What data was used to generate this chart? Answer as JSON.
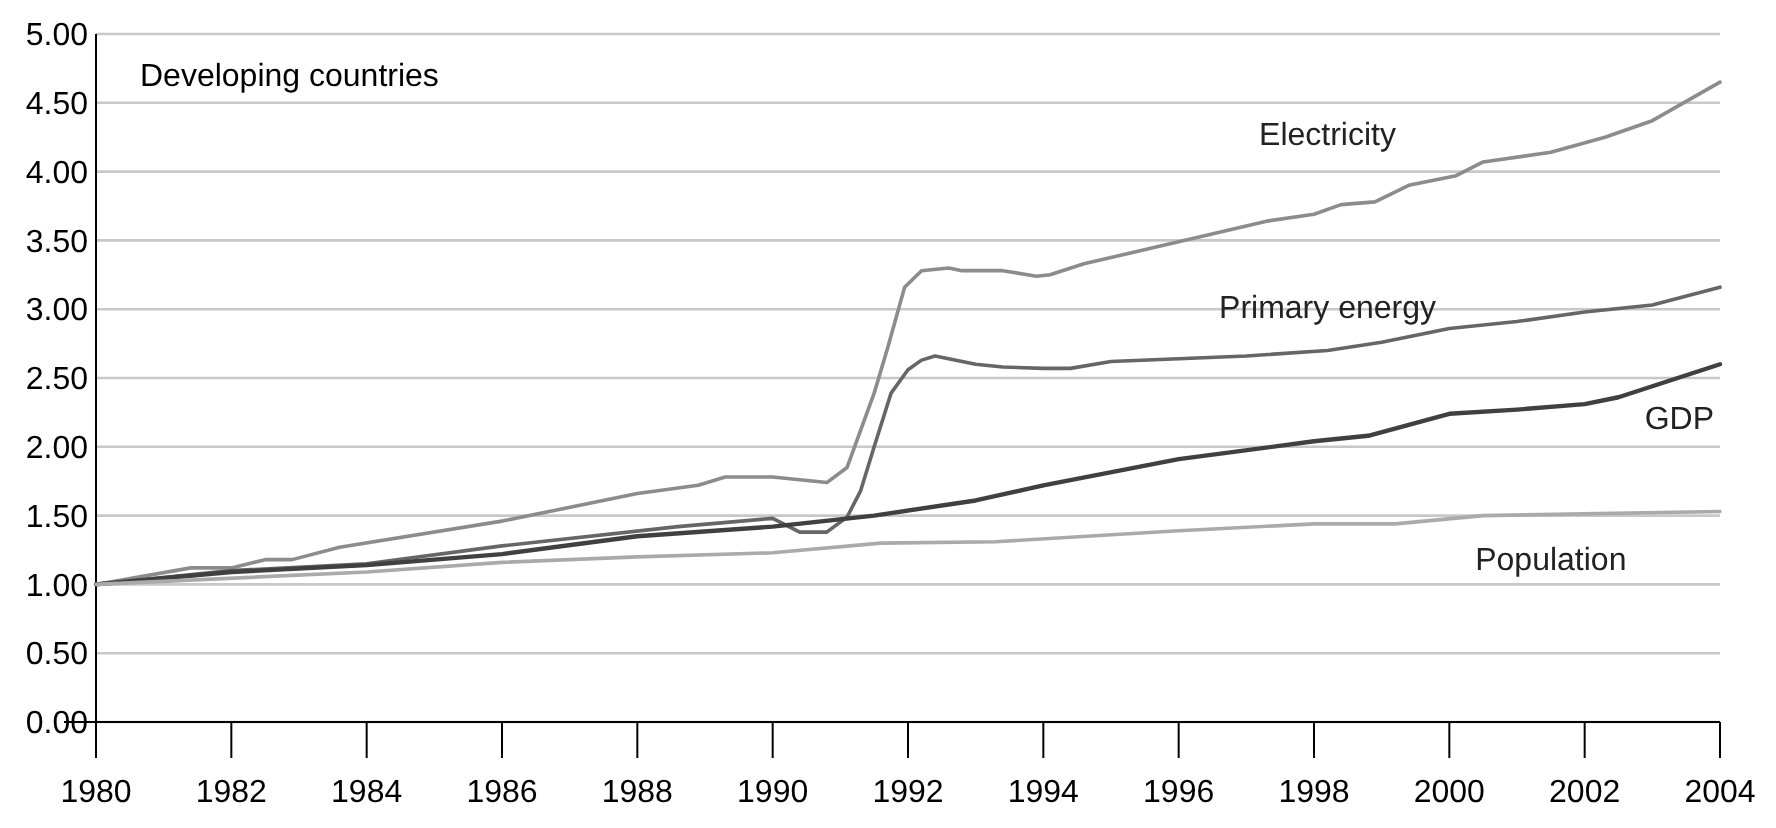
{
  "chart_data": {
    "type": "line",
    "annotations": [
      "Developing countries"
    ],
    "xlim": [
      1980,
      2004
    ],
    "xticks": [
      1980,
      1982,
      1984,
      1986,
      1988,
      1990,
      1992,
      1994,
      1996,
      1998,
      2000,
      2002,
      2004
    ],
    "ylim": [
      0,
      5
    ],
    "yticks": [
      {
        "value": 0,
        "label": "0.00"
      },
      {
        "value": 0.5,
        "label": "0.50"
      },
      {
        "value": 1,
        "label": "1.00"
      },
      {
        "value": 1.5,
        "label": "1.50"
      },
      {
        "value": 2,
        "label": "2.00"
      },
      {
        "value": 2.5,
        "label": "2.50"
      },
      {
        "value": 3,
        "label": "3.00"
      },
      {
        "value": 3.5,
        "label": "3.50"
      },
      {
        "value": 4,
        "label": "4.00"
      },
      {
        "value": 4.5,
        "label": "4.50"
      },
      {
        "value": 5,
        "label": "5.00"
      }
    ],
    "grid": "y",
    "legend": false,
    "marker": "none",
    "line_style": "solid",
    "series": [
      {
        "name": "Electricity",
        "color": "#8c8c8c",
        "x": [
          1980,
          1981.4,
          1982,
          1982.5,
          1982.9,
          1983.6,
          1986,
          1988,
          1988.9,
          1989.3,
          1990,
          1990.8,
          1991.1,
          1991.5,
          1991.7,
          1991.95,
          1992.2,
          1992.6,
          1992.8,
          1993.4,
          1993.9,
          1994.1,
          1994.6,
          1996,
          1997.3,
          1998,
          1998.4,
          1998.9,
          1999.4,
          2000.1,
          2000.5,
          2001.5,
          2002.3,
          2003,
          2004
        ],
        "values": [
          1.0,
          1.12,
          1.12,
          1.18,
          1.18,
          1.27,
          1.46,
          1.66,
          1.72,
          1.78,
          1.78,
          1.74,
          1.85,
          2.39,
          2.72,
          3.16,
          3.28,
          3.3,
          3.28,
          3.28,
          3.24,
          3.25,
          3.33,
          3.49,
          3.64,
          3.69,
          3.76,
          3.78,
          3.9,
          3.97,
          4.07,
          4.14,
          4.25,
          4.37,
          4.65
        ]
      },
      {
        "name": "Primary energy",
        "color": "#666666",
        "x": [
          1980,
          1982,
          1984,
          1986,
          1988.6,
          1990,
          1990.4,
          1990.8,
          1991.1,
          1991.3,
          1991.5,
          1991.75,
          1992,
          1992.2,
          1992.4,
          1993,
          1993.4,
          1994,
          1994.4,
          1995,
          1996,
          1997,
          1998.2,
          1999,
          2000,
          2001,
          2002,
          2003,
          2004
        ],
        "values": [
          1.0,
          1.1,
          1.15,
          1.28,
          1.42,
          1.48,
          1.38,
          1.38,
          1.49,
          1.68,
          2.0,
          2.39,
          2.56,
          2.63,
          2.66,
          2.6,
          2.58,
          2.57,
          2.57,
          2.62,
          2.64,
          2.66,
          2.7,
          2.76,
          2.86,
          2.91,
          2.98,
          3.03,
          3.16
        ]
      },
      {
        "name": "GDP",
        "color": "#404040",
        "x": [
          1980,
          1982,
          1984,
          1986,
          1988,
          1990,
          1991.5,
          1993,
          1994,
          1996,
          1998,
          1998.8,
          2000,
          2001,
          2002,
          2002.5,
          2004
        ],
        "values": [
          1.0,
          1.09,
          1.14,
          1.22,
          1.35,
          1.42,
          1.5,
          1.61,
          1.72,
          1.91,
          2.04,
          2.08,
          2.24,
          2.27,
          2.31,
          2.36,
          2.6
        ]
      },
      {
        "name": "Population",
        "color": "#aaaaaa",
        "x": [
          1980,
          1984,
          1986,
          1988,
          1990,
          1991.6,
          1993.3,
          1996,
          1998,
          1999.2,
          2000.5,
          2004
        ],
        "values": [
          1.0,
          1.09,
          1.16,
          1.2,
          1.23,
          1.3,
          1.31,
          1.39,
          1.44,
          1.44,
          1.5,
          1.53
        ]
      }
    ]
  }
}
